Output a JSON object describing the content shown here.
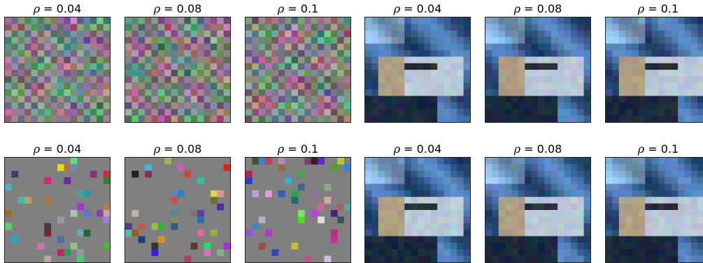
{
  "rows": [
    {
      "panels": [
        {
          "symbol": "ρ",
          "eq": " = ",
          "value": "0.04",
          "kind": "noise-dense",
          "seed": 11
        },
        {
          "symbol": "ρ",
          "eq": " = ",
          "value": "0.08",
          "kind": "noise-dense",
          "seed": 23
        },
        {
          "symbol": "ρ",
          "eq": " = ",
          "value": "0.1",
          "kind": "noise-dense",
          "seed": 37
        },
        {
          "symbol": "ρ",
          "eq": " = ",
          "value": "0.04",
          "kind": "car",
          "seed": 41
        },
        {
          "symbol": "ρ",
          "eq": " = ",
          "value": "0.08",
          "kind": "car",
          "seed": 53
        },
        {
          "symbol": "ρ",
          "eq": " = ",
          "value": "0.1",
          "kind": "car",
          "seed": 67
        }
      ]
    },
    {
      "panels": [
        {
          "symbol": "ρ",
          "eq": " = ",
          "value": "0.04",
          "kind": "noise-sparse",
          "seed": 71
        },
        {
          "symbol": "ρ",
          "eq": " = ",
          "value": "0.08",
          "kind": "noise-sparse",
          "seed": 83
        },
        {
          "symbol": "ρ",
          "eq": " = ",
          "value": "0.1",
          "kind": "noise-sparse",
          "seed": 97
        },
        {
          "symbol": "ρ",
          "eq": " = ",
          "value": "0.04",
          "kind": "car",
          "seed": 101
        },
        {
          "symbol": "ρ",
          "eq": " = ",
          "value": "0.08",
          "kind": "car",
          "seed": 113
        },
        {
          "symbol": "ρ",
          "eq": " = ",
          "value": "0.1",
          "kind": "car",
          "seed": 127
        }
      ]
    }
  ]
}
